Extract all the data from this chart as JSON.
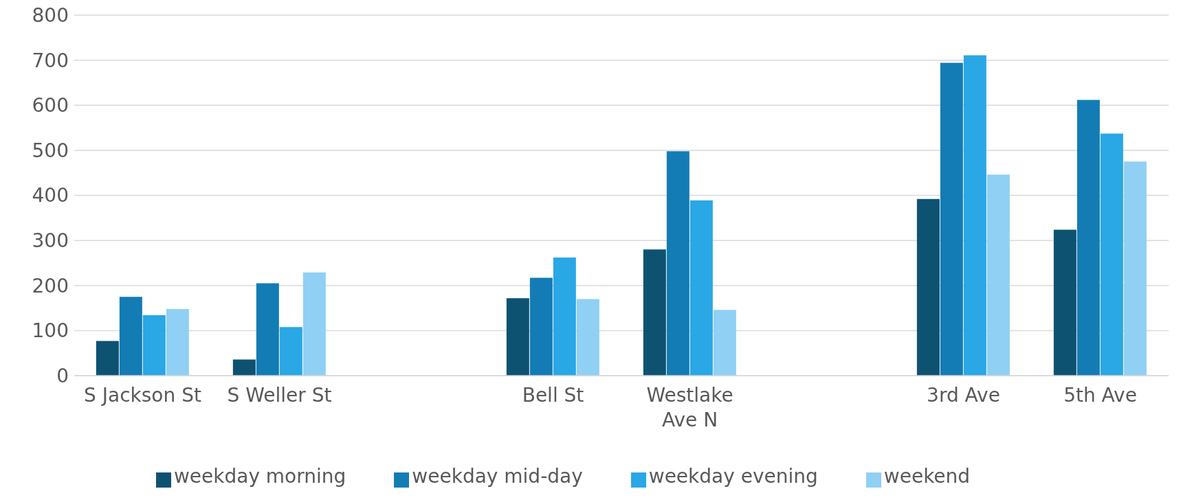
{
  "chart_data": {
    "type": "bar",
    "categories": [
      "S Jackson St",
      "S Weller St",
      null,
      "Bell St",
      "Westlake Ave N",
      null,
      "3rd Ave",
      "5th Ave"
    ],
    "series": [
      {
        "name": "weekday morning",
        "color": "#0e5272",
        "values": [
          77,
          36,
          null,
          172,
          280,
          null,
          392,
          324
        ]
      },
      {
        "name": "weekday mid-day",
        "color": "#137cb4",
        "values": [
          175,
          205,
          null,
          217,
          498,
          null,
          694,
          612
        ]
      },
      {
        "name": "weekday evening",
        "color": "#2aa7e5",
        "values": [
          134,
          108,
          null,
          262,
          389,
          null,
          711,
          537
        ]
      },
      {
        "name": "weekend",
        "color": "#90d0f4",
        "values": [
          148,
          229,
          null,
          170,
          146,
          null,
          446,
          475
        ]
      }
    ],
    "ylim": [
      0,
      800
    ],
    "yticks": [
      0,
      100,
      200,
      300,
      400,
      500,
      600,
      700,
      800
    ],
    "grid": "y",
    "legend": "bottom"
  }
}
